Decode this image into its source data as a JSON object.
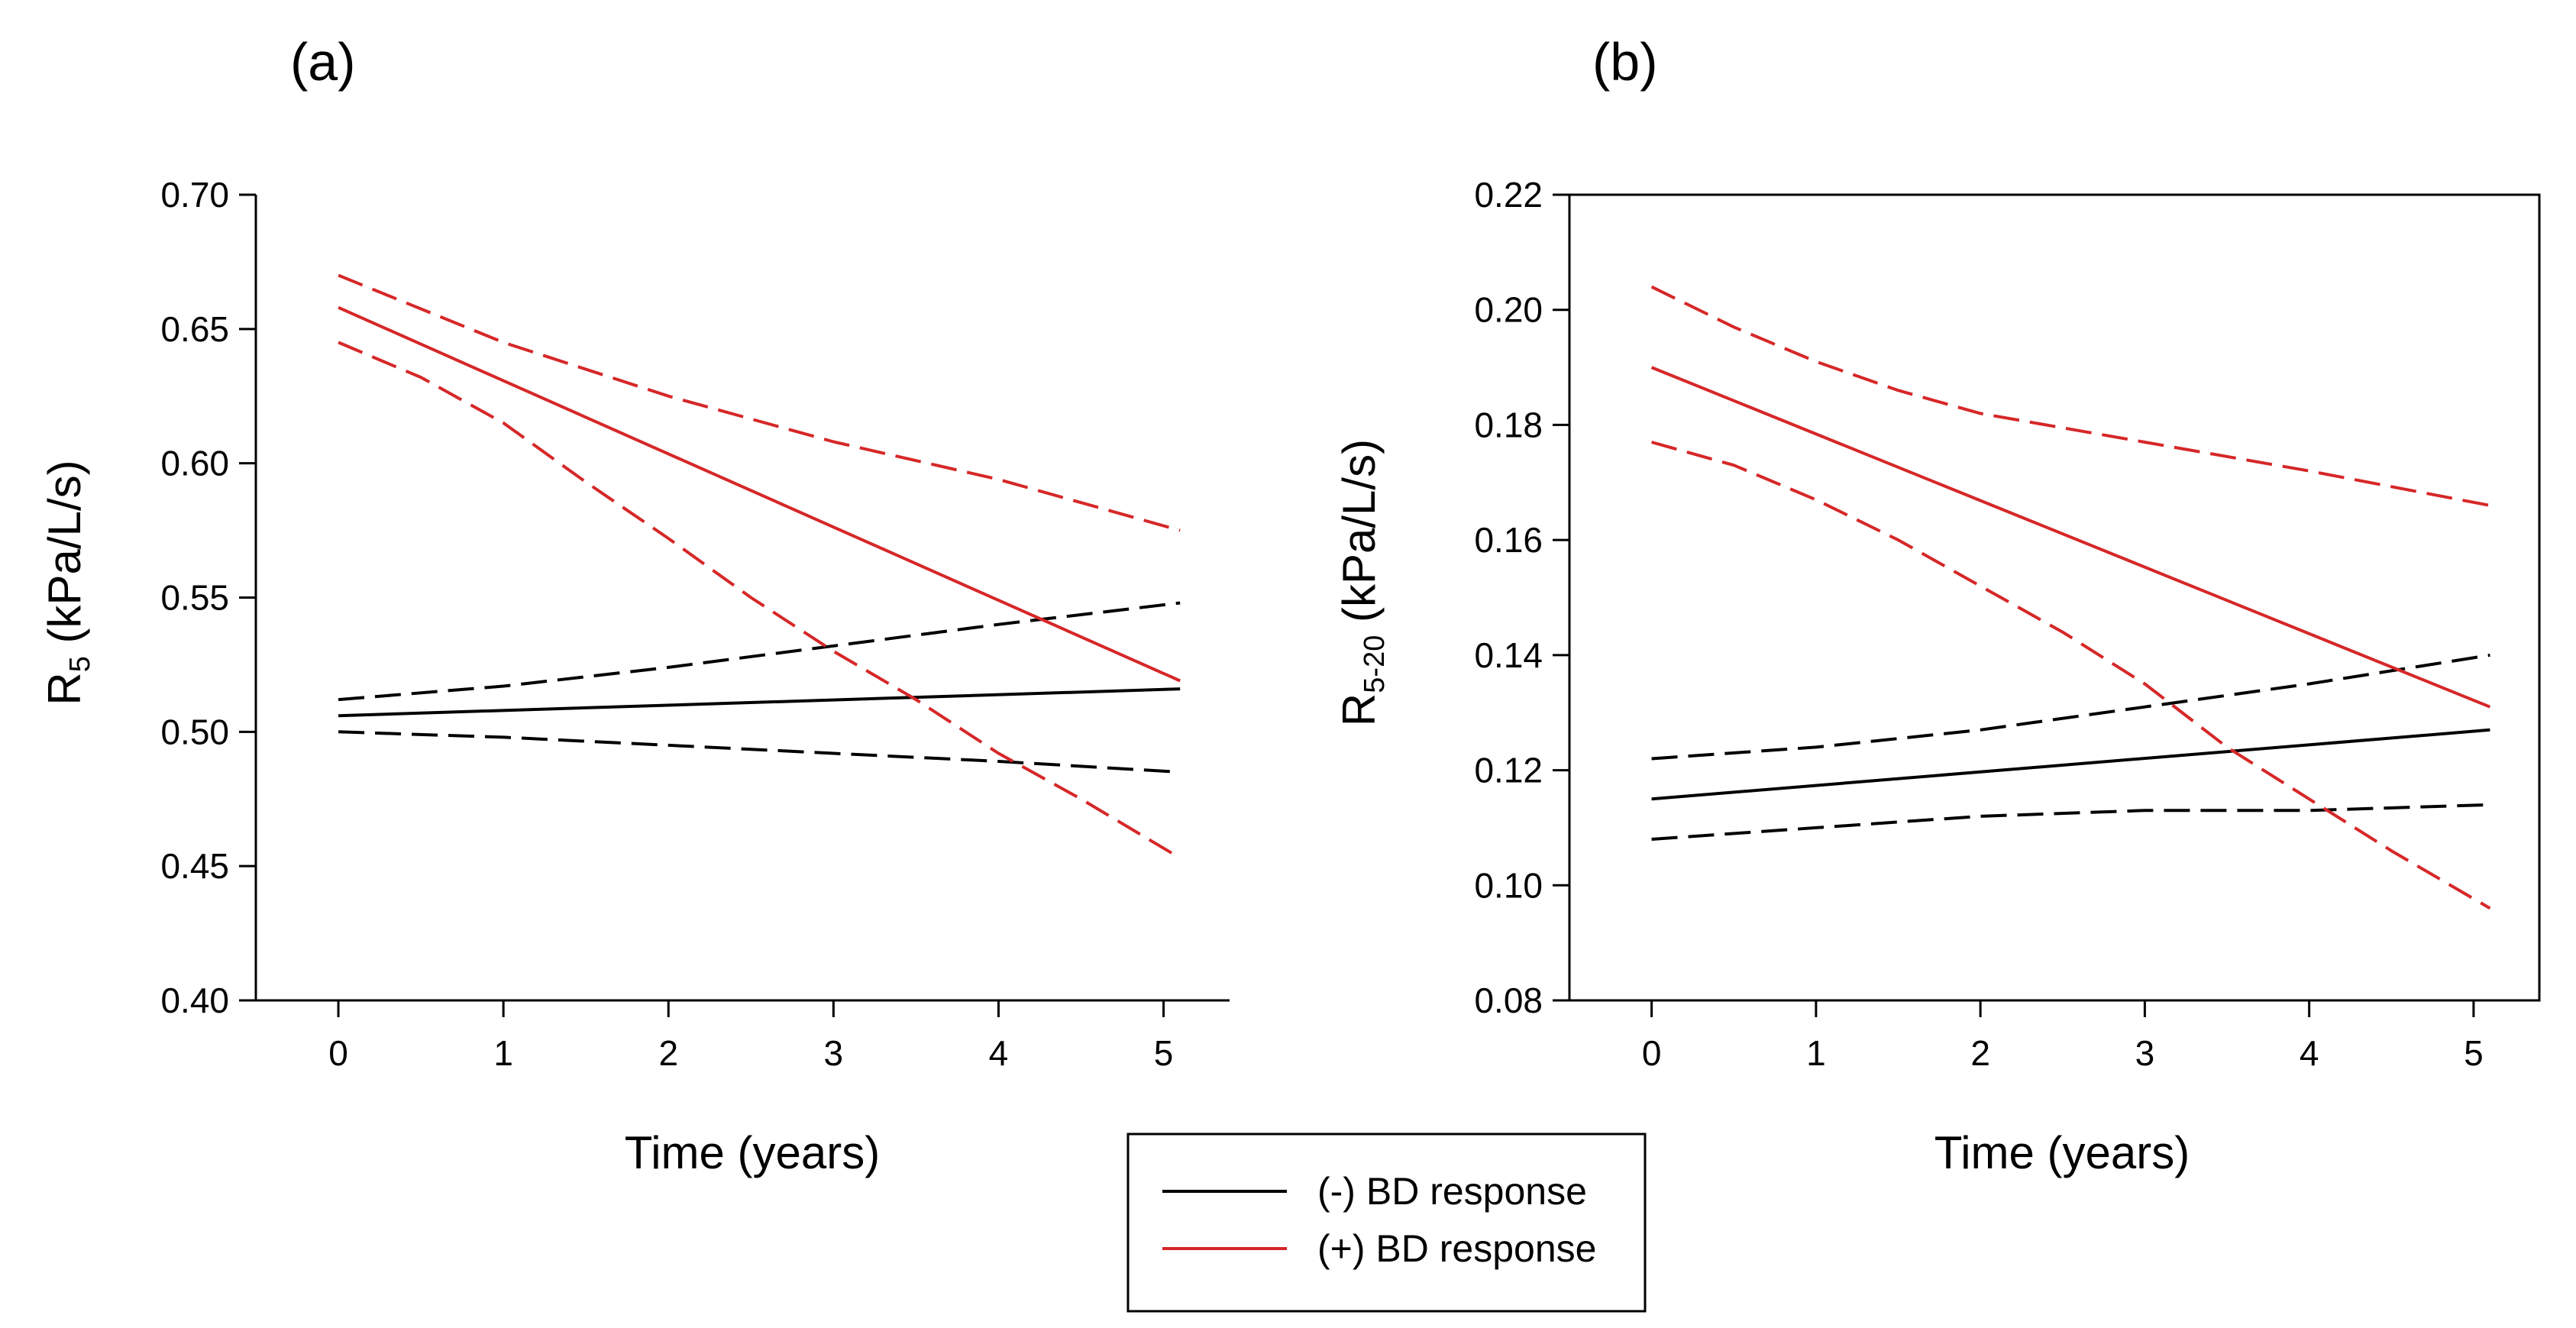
{
  "chart_data": [
    {
      "type": "line",
      "panel_label": "(a)",
      "xlabel": "Time (years)",
      "ylabel_main": "R",
      "ylabel_sub": "5",
      "ylabel_unit": " (kPa/L/s)",
      "xlim": [
        -0.5,
        5.4
      ],
      "ylim": [
        0.4,
        0.7
      ],
      "xticks": [
        0,
        1,
        2,
        3,
        4,
        5
      ],
      "yticks": [
        0.4,
        0.45,
        0.5,
        0.55,
        0.6,
        0.65,
        0.7
      ],
      "ytick_labels": [
        "0.40",
        "0.45",
        "0.50",
        "0.55",
        "0.60",
        "0.65",
        "0.70"
      ],
      "series": [
        {
          "group": "neg",
          "kind": "fit",
          "x": [
            0,
            5.1
          ],
          "y": [
            0.506,
            0.516
          ]
        },
        {
          "group": "neg",
          "kind": "ci_upper",
          "x": [
            0,
            1,
            2,
            3,
            4,
            5.1
          ],
          "y": [
            0.512,
            0.517,
            0.524,
            0.532,
            0.54,
            0.548
          ]
        },
        {
          "group": "neg",
          "kind": "ci_lower",
          "x": [
            0,
            1,
            2,
            3,
            4,
            5.1
          ],
          "y": [
            0.5,
            0.498,
            0.495,
            0.492,
            0.489,
            0.485
          ]
        },
        {
          "group": "pos",
          "kind": "fit",
          "x": [
            0,
            5.1
          ],
          "y": [
            0.658,
            0.519
          ]
        },
        {
          "group": "pos",
          "kind": "ci_upper",
          "x": [
            0,
            1,
            2,
            3,
            4,
            5.1
          ],
          "y": [
            0.67,
            0.645,
            0.625,
            0.608,
            0.594,
            0.575
          ]
        },
        {
          "group": "pos",
          "kind": "ci_lower",
          "x": [
            0,
            0.5,
            1,
            1.5,
            2,
            2.5,
            3,
            3.5,
            4,
            4.5,
            5.1
          ],
          "y": [
            0.645,
            0.632,
            0.615,
            0.593,
            0.572,
            0.55,
            0.53,
            0.512,
            0.492,
            0.475,
            0.453
          ]
        }
      ]
    },
    {
      "type": "line",
      "panel_label": "(b)",
      "xlabel": "Time (years)",
      "ylabel_main": "R",
      "ylabel_sub": "5-20",
      "ylabel_unit": " (kPa/L/s)",
      "xlim": [
        -0.5,
        5.4
      ],
      "ylim": [
        0.08,
        0.22
      ],
      "xticks": [
        0,
        1,
        2,
        3,
        4,
        5
      ],
      "yticks": [
        0.08,
        0.1,
        0.12,
        0.14,
        0.16,
        0.18,
        0.2,
        0.22
      ],
      "ytick_labels": [
        "0.08",
        "0.10",
        "0.12",
        "0.14",
        "0.16",
        "0.18",
        "0.20",
        "0.22"
      ],
      "series": [
        {
          "group": "neg",
          "kind": "fit",
          "x": [
            0,
            5.1
          ],
          "y": [
            0.115,
            0.127
          ]
        },
        {
          "group": "neg",
          "kind": "ci_upper",
          "x": [
            0,
            1,
            2,
            3,
            4,
            5.1
          ],
          "y": [
            0.122,
            0.124,
            0.127,
            0.131,
            0.135,
            0.14
          ]
        },
        {
          "group": "neg",
          "kind": "ci_lower",
          "x": [
            0,
            1,
            2,
            3,
            4,
            5.1
          ],
          "y": [
            0.108,
            0.11,
            0.112,
            0.113,
            0.113,
            0.114
          ]
        },
        {
          "group": "pos",
          "kind": "fit",
          "x": [
            0,
            5.1
          ],
          "y": [
            0.19,
            0.131
          ]
        },
        {
          "group": "pos",
          "kind": "ci_upper",
          "x": [
            0,
            0.5,
            1,
            1.5,
            2,
            3,
            4,
            5.1
          ],
          "y": [
            0.204,
            0.197,
            0.191,
            0.186,
            0.182,
            0.177,
            0.172,
            0.166
          ]
        },
        {
          "group": "pos",
          "kind": "ci_lower",
          "x": [
            0,
            0.5,
            1,
            1.5,
            2,
            2.5,
            3,
            3.5,
            4,
            4.5,
            5.1
          ],
          "y": [
            0.177,
            0.173,
            0.167,
            0.16,
            0.152,
            0.144,
            0.135,
            0.124,
            0.115,
            0.106,
            0.096
          ]
        }
      ]
    }
  ],
  "legend": {
    "items": [
      {
        "group": "neg",
        "label": "(-) BD response"
      },
      {
        "group": "pos",
        "label": "(+) BD response"
      }
    ]
  },
  "colors": {
    "neg": "#000000",
    "pos": "#d62728"
  }
}
